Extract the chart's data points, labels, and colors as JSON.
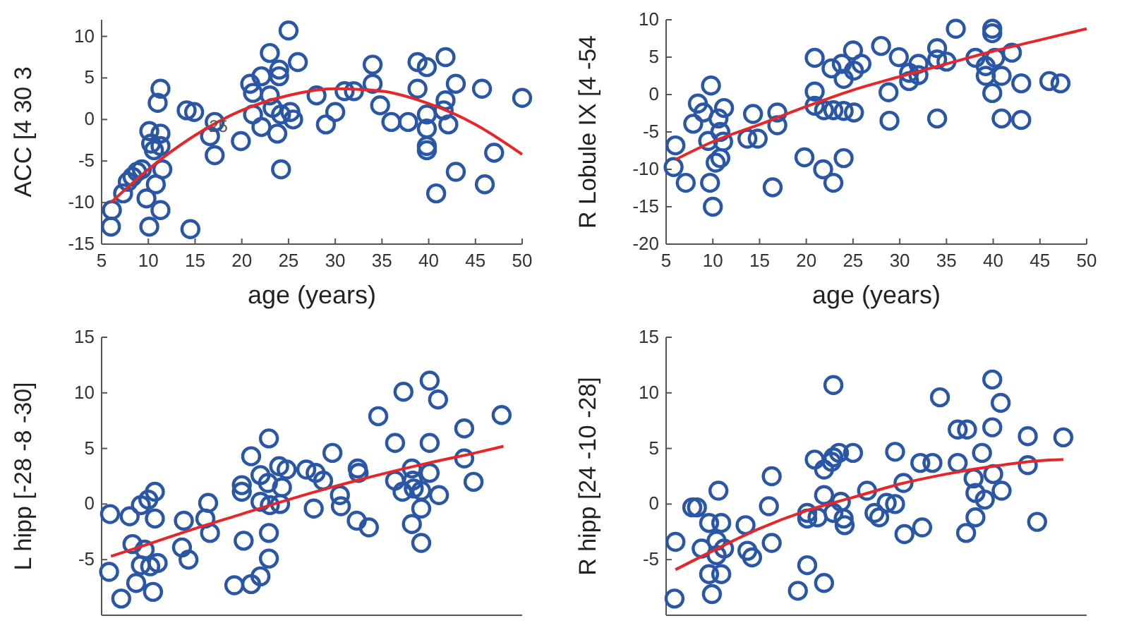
{
  "chart_data": [
    {
      "type": "scatter",
      "xlabel": "age (years)",
      "ylabel": "ACC [4 30 3",
      "xlim": [
        5,
        50
      ],
      "ylim": [
        -15,
        12
      ],
      "xticks": [
        5,
        10,
        15,
        20,
        25,
        30,
        35,
        40,
        45,
        50
      ],
      "yticks": [
        -15,
        -10,
        -5,
        0,
        5,
        10
      ],
      "annotations": [
        {
          "text": "25",
          "x": 17.5,
          "y": -1.5
        }
      ],
      "series": [
        {
          "color": "#2a56a6",
          "marker": "circle",
          "x": [
            6,
            6.1,
            7.3,
            7.8,
            8.3,
            8.8,
            9.3,
            9.8,
            10.1,
            10.1,
            10.3,
            10.6,
            10.8,
            11,
            11.3,
            11.3,
            11.3,
            11.5,
            11.3,
            14.1,
            14.9,
            14.5,
            16.6,
            17.1,
            17.1,
            19.9,
            20.9,
            21.2,
            21.2,
            22.1,
            22.1,
            23,
            23,
            23.3,
            24,
            24,
            23.8,
            24.2,
            24.2,
            25,
            25.2,
            25.5,
            26,
            28,
            29,
            30,
            31,
            32,
            34,
            34,
            34.8,
            36,
            37.8,
            38.8,
            38.8,
            39.8,
            39.8,
            39.8,
            39.8,
            39.8,
            40.8,
            41.6,
            41.8,
            41.8,
            42.1,
            42.9,
            42.9,
            45.7,
            46,
            47,
            50
          ],
          "values": [
            -12.9,
            -10.9,
            -8.9,
            -7.5,
            -6.9,
            -6.3,
            -6,
            -9.5,
            -12.9,
            -1.4,
            -2.9,
            -3.7,
            -7.8,
            2,
            3.7,
            -1.7,
            -3.2,
            -6,
            -10.9,
            1.1,
            0.9,
            -13.2,
            -2,
            -4.3,
            -0.3,
            -2.6,
            4.3,
            3.2,
            0.6,
            5.2,
            -0.9,
            8,
            2.9,
            1.4,
            6,
            5.2,
            -1.7,
            -6,
            0.6,
            10.7,
            0.9,
            0,
            6.9,
            2.9,
            -0.6,
            0.9,
            3.4,
            3.4,
            6.6,
            4.3,
            1.7,
            -0.3,
            -0.3,
            3.7,
            6.9,
            6.3,
            0.6,
            -1.1,
            -3.2,
            -3.7,
            -8.9,
            1.1,
            2.3,
            7.5,
            -0.6,
            4.3,
            -6.3,
            3.7,
            -7.8,
            -4,
            2.6
          ]
        },
        {
          "type": "line",
          "color": "#e8262a",
          "x": [
            6,
            10,
            15,
            20,
            25,
            30,
            35,
            40,
            45,
            50
          ],
          "values": [
            -10,
            -6,
            -1.9,
            1.1,
            2.9,
            3.7,
            3.4,
            1.9,
            -0.6,
            -4.2
          ]
        }
      ]
    },
    {
      "type": "scatter",
      "xlabel": "age (years)",
      "ylabel": "R Lobule IX [4 -54",
      "xlim": [
        5,
        50
      ],
      "ylim": [
        -20,
        10
      ],
      "xticks": [
        5,
        10,
        15,
        20,
        25,
        30,
        35,
        40,
        45,
        50
      ],
      "yticks": [
        -20,
        -15,
        -10,
        -5,
        0,
        5,
        10
      ],
      "series": [
        {
          "color": "#2a56a6",
          "marker": "circle",
          "x": [
            5.8,
            6,
            7.1,
            7.9,
            8.4,
            9,
            9.5,
            9.7,
            9.8,
            10,
            10.3,
            10.6,
            10.8,
            10.8,
            11.1,
            11.2,
            13.7,
            14.3,
            14.8,
            16.4,
            16.9,
            16.9,
            19.8,
            20.9,
            20.9,
            20.9,
            21.8,
            21.9,
            22.7,
            22.9,
            22.9,
            23.8,
            24,
            24,
            24,
            25,
            25.1,
            25.1,
            25.9,
            28,
            28.8,
            28.9,
            29.9,
            31,
            31,
            32,
            32,
            34,
            34,
            34,
            35,
            36,
            38.1,
            39.2,
            39.2,
            39.9,
            39.9,
            40.2,
            39.9,
            40.9,
            40.9,
            42,
            43,
            43,
            46,
            47.2
          ],
          "values": [
            -9.7,
            -6.8,
            -11.8,
            -3.9,
            -1.2,
            -2.4,
            -6.2,
            -11.8,
            1.2,
            -15,
            -9.1,
            -3.2,
            -5,
            -8.5,
            -6.3,
            -1.8,
            -5.9,
            -2.6,
            -5.9,
            -12.4,
            -2.4,
            -4.1,
            -8.4,
            4.9,
            0.4,
            -1.5,
            -10,
            -2.1,
            3.5,
            -2.1,
            -11.8,
            4.1,
            2.1,
            -2.2,
            -8.5,
            5.9,
            3.2,
            -2.4,
            4.1,
            6.5,
            0.3,
            -3.5,
            5,
            2.9,
            1.8,
            4.1,
            2.6,
            6.2,
            4.7,
            -3.2,
            4.4,
            8.8,
            4.9,
            3.8,
            2.5,
            8.8,
            8.2,
            4.9,
            0.2,
            2.5,
            -3.2,
            5.6,
            1.5,
            -3.4,
            1.8,
            1.5
          ]
        },
        {
          "type": "line",
          "color": "#e8262a",
          "x": [
            6,
            10,
            15,
            20,
            25,
            30,
            35,
            40,
            45,
            50
          ],
          "values": [
            -8.7,
            -6.3,
            -4,
            -1.6,
            0.6,
            2.4,
            4.1,
            5.8,
            7.3,
            8.8
          ]
        }
      ]
    },
    {
      "type": "scatter",
      "ylabel": "L hipp [-28 -8 -30]",
      "xlim": [
        5,
        50
      ],
      "ylim": [
        -10,
        15
      ],
      "yticks": [
        -5,
        0,
        5,
        10,
        15
      ],
      "tick_labels": "y",
      "series": [
        {
          "color": "#2a56a6",
          "marker": "circle",
          "x": [
            5.9,
            5.8,
            7.1,
            8,
            8.3,
            8.7,
            9.2,
            9.2,
            9.6,
            10,
            10.2,
            10.5,
            10.7,
            10.7,
            11,
            13.8,
            13.6,
            14.3,
            16.1,
            16.4,
            16.6,
            19.2,
            20,
            20,
            20.2,
            21,
            21,
            22,
            22,
            22,
            22.8,
            22.9,
            23,
            22.9,
            22.9,
            24,
            24.3,
            24.1,
            24.8,
            26.9,
            27.9,
            27.7,
            28.7,
            29.7,
            30.5,
            30.6,
            32.3,
            32.4,
            32.5,
            33.6,
            34.6,
            36.4,
            36.4,
            37.2,
            37.3,
            38.2,
            38.3,
            38.4,
            39.2,
            39.2,
            38.2,
            39.2,
            40.1,
            40.1,
            40.1,
            41,
            41.1,
            43.8,
            43.8,
            44.8,
            47.8
          ],
          "values": [
            -0.9,
            -6.1,
            -8.5,
            -1.1,
            -3.6,
            -7.1,
            -5.5,
            -0.1,
            -4.1,
            0.4,
            -5.6,
            -7.9,
            1.1,
            -1.3,
            -5.3,
            -1.5,
            -3.9,
            -5,
            -1.3,
            0.1,
            -2.6,
            -7.3,
            1.7,
            1.1,
            -3.3,
            4.3,
            -7.2,
            2.6,
            -6.5,
            0.2,
            1.9,
            5.9,
            -0.1,
            -2.6,
            -4.9,
            3.4,
            1.5,
            0,
            3.1,
            3.1,
            2.8,
            -0.4,
            2.1,
            4.6,
            0.8,
            -0.2,
            -1.5,
            3.2,
            2.8,
            -2.1,
            7.9,
            5.5,
            2.1,
            1.1,
            10.1,
            3.2,
            2.1,
            1.4,
            -0.4,
            1.2,
            -1.8,
            -3.5,
            11.1,
            5.5,
            2.8,
            9.4,
            0.8,
            6.8,
            4.1,
            2,
            8
          ]
        },
        {
          "type": "line",
          "color": "#e8262a",
          "x": [
            6,
            10,
            15,
            20,
            25,
            30,
            35,
            40,
            45,
            48
          ],
          "values": [
            -4.7,
            -3.6,
            -2.2,
            -0.9,
            0.4,
            1.6,
            2.7,
            3.7,
            4.6,
            5.2
          ]
        }
      ]
    },
    {
      "type": "scatter",
      "ylabel": "R hipp [24 -10 -28]",
      "xlim": [
        5,
        50
      ],
      "ylim": [
        -10,
        15
      ],
      "yticks": [
        -5,
        0,
        5,
        10,
        15
      ],
      "tick_labels": "y",
      "series": [
        {
          "color": "#2a56a6",
          "marker": "circle",
          "x": [
            6,
            5.9,
            7.8,
            8.3,
            8.8,
            9.6,
            9.6,
            9.9,
            10.4,
            10.4,
            10.6,
            10.9,
            10.9,
            11.2,
            13.5,
            13.7,
            14.2,
            16,
            16.3,
            16.3,
            19.1,
            20.1,
            20.1,
            20.1,
            20.9,
            21.2,
            21.9,
            21.9,
            21.9,
            22.7,
            22.9,
            22.9,
            22.9,
            23.5,
            23.7,
            24,
            24.1,
            25,
            26.5,
            27.3,
            27.8,
            28.6,
            29.5,
            29.5,
            30.4,
            30.5,
            32.2,
            32.4,
            33.5,
            34.3,
            36.2,
            37.2,
            36.2,
            37.1,
            38.1,
            37.9,
            38.1,
            38.8,
            39.1,
            39.9,
            39.9,
            40,
            40.8,
            40.9,
            43.7,
            43.7,
            44.7,
            47.5
          ],
          "values": [
            -3.4,
            -8.5,
            -0.3,
            -0.3,
            -4,
            -1.7,
            -6.3,
            -8.1,
            -3.3,
            -4.6,
            1.2,
            -1.7,
            -6.3,
            -4,
            -1.9,
            -4.2,
            -4.8,
            -0.2,
            2.5,
            -3.5,
            -7.8,
            -0.8,
            -1.3,
            -5.5,
            4,
            -1.2,
            3.1,
            -7.1,
            0.8,
            3.8,
            10.7,
            4.2,
            -0.8,
            4.6,
            0.2,
            -1.3,
            -1.9,
            4.6,
            1.2,
            -0.8,
            -1.2,
            0.1,
            4.7,
            0,
            1.9,
            -2.7,
            3.7,
            -2.1,
            3.7,
            9.6,
            6.7,
            6.7,
            3.7,
            -2.6,
            -1.2,
            2.3,
            1,
            4.6,
            0.4,
            11.2,
            6.9,
            2.7,
            9.1,
            1.2,
            6.1,
            3.5,
            -1.6,
            6
          ]
        },
        {
          "type": "line",
          "color": "#e8262a",
          "x": [
            6,
            10,
            15,
            20,
            25,
            30,
            35,
            40,
            45,
            47.5
          ],
          "values": [
            -5.9,
            -4.2,
            -2.2,
            -0.6,
            0.6,
            1.8,
            2.7,
            3.4,
            3.9,
            4
          ]
        }
      ]
    }
  ]
}
